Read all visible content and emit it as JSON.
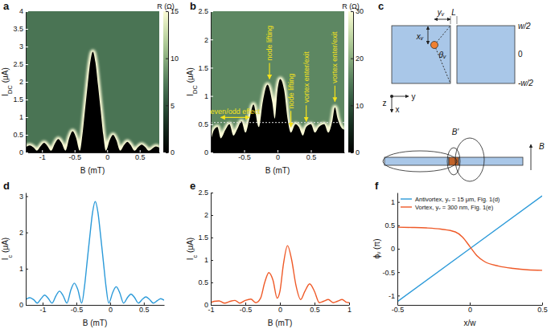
{
  "chart_data": [
    {
      "type": "heatmap",
      "panel_label": "a",
      "x_label": "B (mT)",
      "y_label": [
        "I",
        "DC",
        " (μA)"
      ],
      "xlim": [
        -1.25,
        0.8
      ],
      "xticks": [
        -1,
        -0.5,
        0,
        0.5
      ],
      "ylim": [
        0,
        4
      ],
      "yticks": [
        0,
        0.5,
        1,
        1.5,
        2,
        2.5,
        3,
        3.5,
        4
      ],
      "x": [
        -1.25,
        -1.19,
        -1.13,
        -1.08,
        -1.02,
        -0.97,
        -0.92,
        -0.86,
        -0.8,
        -0.75,
        -0.7,
        -0.64,
        -0.58,
        -0.53,
        -0.48,
        -0.42,
        -0.38,
        -0.34,
        -0.3,
        -0.26,
        -0.22,
        -0.18,
        -0.14,
        -0.1,
        -0.06,
        -0.02,
        0.04,
        0.09,
        0.14,
        0.2,
        0.26,
        0.31,
        0.36,
        0.42,
        0.48,
        0.53,
        0.58,
        0.64,
        0.7,
        0.75,
        0.8
      ],
      "switching_current": [
        0.15,
        0.2,
        0.14,
        0.05,
        0.18,
        0.27,
        0.19,
        0.05,
        0.26,
        0.38,
        0.27,
        0.05,
        0.42,
        0.6,
        0.43,
        0.05,
        0.5,
        1.2,
        1.9,
        2.55,
        2.85,
        2.55,
        1.9,
        1.2,
        0.5,
        0.05,
        0.35,
        0.5,
        0.35,
        0.05,
        0.21,
        0.3,
        0.21,
        0.05,
        0.16,
        0.22,
        0.16,
        0.05,
        0.12,
        0.17,
        0.13
      ],
      "normal_resistance": 7,
      "peak_resistance": 15,
      "colorbar": {
        "title": "R (Ω)",
        "range": [
          0,
          15
        ],
        "ticks": [
          0,
          5,
          10,
          15
        ]
      }
    },
    {
      "type": "heatmap",
      "panel_label": "b",
      "x_label": "B (mT)",
      "y_label": [
        "I",
        "DC",
        " (μA)"
      ],
      "xlim": [
        -1,
        1
      ],
      "xticks": [
        -0.5,
        0,
        0.5
      ],
      "ylim": [
        0,
        2.5
      ],
      "yticks": [
        0,
        0.5,
        1,
        1.5,
        2,
        2.5
      ],
      "x": [
        -1,
        -0.95,
        -0.9,
        -0.85,
        -0.78,
        -0.72,
        -0.66,
        -0.6,
        -0.54,
        -0.48,
        -0.42,
        -0.36,
        -0.28,
        -0.22,
        -0.15,
        -0.08,
        -0.04,
        0,
        0.04,
        0.1,
        0.15,
        0.2,
        0.27,
        0.32,
        0.38,
        0.43,
        0.5,
        0.56,
        0.62,
        0.7,
        0.76,
        0.82,
        0.86,
        0.9,
        0.95,
        1
      ],
      "switching_current": [
        0.2,
        0.4,
        0.45,
        0.25,
        0.4,
        0.5,
        0.3,
        0.42,
        0.55,
        0.35,
        0.6,
        0.85,
        0.45,
        0.9,
        1.2,
        0.9,
        0.6,
        1.1,
        1.3,
        1.1,
        0.6,
        0.35,
        0.5,
        0.45,
        0.3,
        0.45,
        0.5,
        0.35,
        0.45,
        0.5,
        0.35,
        0.55,
        0.8,
        0.6,
        0.45,
        0.4
      ],
      "normal_resistance": 16,
      "peak_resistance": 30,
      "colorbar": {
        "title": "R (Ω)",
        "range": [
          0,
          30
        ],
        "ticks": [
          0,
          10,
          20,
          30
        ]
      },
      "reference_line": 0.53,
      "annotations": [
        {
          "text": "even/odd effect",
          "x": [
            -0.85,
            -0.42
          ],
          "y": 0.62
        },
        {
          "text": "node lifting",
          "x": -0.12,
          "y": 1.3
        },
        {
          "text": "node lifting",
          "x": 0.2,
          "y": 0.45
        },
        {
          "text": "vortex enter/exit",
          "x": 0.43,
          "y": 0.55
        },
        {
          "text": "vortex enter/exit",
          "x": 0.86,
          "y": 0.9
        }
      ]
    },
    {
      "type": "diagram",
      "panel_label": "c",
      "labels": {
        "yv": "yᵥ",
        "L": "L",
        "xv": "xᵥ",
        "theta": "θᵥ",
        "top": "w/2",
        "mid": "0",
        "bottom": "-w/2",
        "ax_x": "x",
        "ax_y": "y",
        "ax_z": "z",
        "b_prime": "B'",
        "b": "B"
      }
    },
    {
      "type": "line",
      "panel_label": "d",
      "x_label": "B (mT)",
      "y_label": [
        "I",
        "c",
        " (μA)"
      ],
      "xlim": [
        -1.25,
        0.8
      ],
      "xticks": [
        -1,
        -0.5,
        0,
        0.5
      ],
      "ylim": [
        0,
        3.1
      ],
      "yticks": [
        0,
        1,
        2,
        3
      ],
      "x": [
        -1.25,
        -1.19,
        -1.13,
        -1.08,
        -1.02,
        -0.97,
        -0.92,
        -0.86,
        -0.8,
        -0.75,
        -0.7,
        -0.64,
        -0.58,
        -0.53,
        -0.48,
        -0.42,
        -0.38,
        -0.34,
        -0.3,
        -0.26,
        -0.22,
        -0.18,
        -0.14,
        -0.1,
        -0.06,
        -0.02,
        0.04,
        0.09,
        0.14,
        0.2,
        0.26,
        0.31,
        0.36,
        0.42,
        0.48,
        0.53,
        0.58,
        0.64,
        0.7,
        0.75,
        0.8
      ],
      "series": [
        {
          "color": "#2b9ad9",
          "values": [
            0.15,
            0.2,
            0.14,
            0.05,
            0.18,
            0.27,
            0.19,
            0.05,
            0.26,
            0.38,
            0.27,
            0.05,
            0.42,
            0.6,
            0.43,
            0.05,
            0.5,
            1.2,
            1.9,
            2.55,
            2.85,
            2.55,
            1.9,
            1.2,
            0.5,
            0.05,
            0.35,
            0.5,
            0.35,
            0.05,
            0.21,
            0.3,
            0.21,
            0.05,
            0.16,
            0.22,
            0.16,
            0.05,
            0.12,
            0.17,
            0.13
          ]
        }
      ]
    },
    {
      "type": "line",
      "panel_label": "e",
      "x_label": "B (mT)",
      "y_label": [
        "I",
        "c",
        " (μA)"
      ],
      "xlim": [
        -1,
        1
      ],
      "xticks": [
        -1,
        -0.5,
        0,
        0.5,
        1
      ],
      "ylim": [
        0,
        2.5
      ],
      "yticks": [
        0,
        0.5,
        1,
        1.5,
        2,
        2.5
      ],
      "x": [
        -1,
        -0.95,
        -0.88,
        -0.8,
        -0.72,
        -0.65,
        -0.58,
        -0.5,
        -0.42,
        -0.35,
        -0.28,
        -0.22,
        -0.16,
        -0.1,
        -0.04,
        0,
        0.05,
        0.11,
        0.17,
        0.23,
        0.3,
        0.36,
        0.43,
        0.5,
        0.57,
        0.63,
        0.7,
        0.77,
        0.83,
        0.9,
        0.96,
        1
      ],
      "series": [
        {
          "color": "#ef5a28",
          "values": [
            0.05,
            0.08,
            0.09,
            0.04,
            0.08,
            0.1,
            0.04,
            0.1,
            0.13,
            0.05,
            0.15,
            0.5,
            0.72,
            0.55,
            0.15,
            0.3,
            0.9,
            1.32,
            1.0,
            0.45,
            0.12,
            0.3,
            0.47,
            0.3,
            0.05,
            0.08,
            0.12,
            0.05,
            0.08,
            0.12,
            0.06,
            0.05
          ]
        }
      ]
    },
    {
      "type": "line",
      "panel_label": "f",
      "x_label": "x/w",
      "y_label": "ϕᵥ (π)",
      "xlim": [
        -0.5,
        0.5
      ],
      "xticks": [
        -0.5,
        0,
        0.5
      ],
      "ylim": [
        -1.2,
        1.2
      ],
      "yticks": [
        -1,
        -0.5,
        0,
        0.5,
        1
      ],
      "legend": "upper left",
      "series": [
        {
          "name": "Antivortex, yᵥ = 15 μm, Fig. 1(d)",
          "color": "#2b9ad9",
          "x": [
            -0.5,
            0,
            0.5
          ],
          "values": [
            -1.13,
            0,
            1.13
          ]
        },
        {
          "name": "Vortex, yᵥ = 300 nm, Fig. 1(e)",
          "color": "#ef5a28",
          "x": [
            -0.5,
            -0.4,
            -0.3,
            -0.2,
            -0.1,
            -0.05,
            0,
            0.05,
            0.1,
            0.2,
            0.3,
            0.4,
            0.5
          ],
          "values": [
            0.46,
            0.455,
            0.445,
            0.42,
            0.36,
            0.25,
            0.05,
            -0.15,
            -0.27,
            -0.37,
            -0.42,
            -0.45,
            -0.46
          ]
        }
      ]
    }
  ]
}
